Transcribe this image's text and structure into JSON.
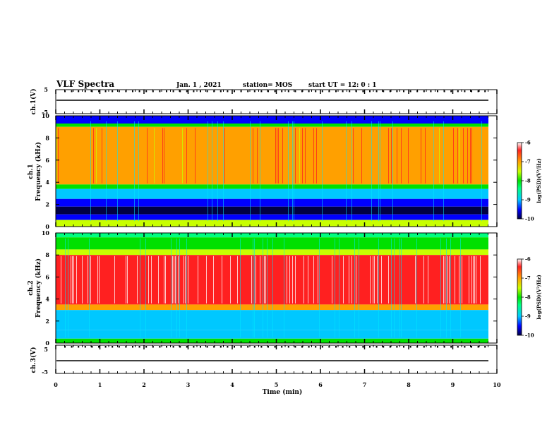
{
  "header": {
    "title": "VLF Spectra",
    "date": "Jan. 1 , 2021",
    "station": "station= MOS",
    "start": "start UT = 12: 0 : 1"
  },
  "chart_data": {
    "type": "heatmap",
    "xlabel": "Time (min)",
    "xlim": [
      0,
      10
    ],
    "x_ticks": [
      "0",
      "1",
      "2",
      "3",
      "4",
      "5",
      "6",
      "7",
      "8",
      "9",
      "10"
    ],
    "panels": [
      {
        "id": "ch1v",
        "ylabel": "ch.1(V)",
        "y_ticks": [
          "5",
          "-5"
        ],
        "ylim": [
          -5,
          5
        ],
        "trace_level": 0,
        "has_markers": true
      },
      {
        "id": "ch1",
        "ylabel_line1": "ch.1",
        "ylabel_line2": "Frequency (kHz)",
        "y_ticks": [
          "10",
          "8",
          "6",
          "4",
          "2",
          "0"
        ],
        "ylim": [
          0,
          10
        ],
        "bands_khz": [
          {
            "from": 9.3,
            "to": 10.0,
            "level": -9.4
          },
          {
            "from": 9.0,
            "to": 9.3,
            "level": -8.2
          },
          {
            "from": 3.8,
            "to": 9.0,
            "level": -7.1
          },
          {
            "from": 3.4,
            "to": 3.8,
            "level": -8.0
          },
          {
            "from": 2.5,
            "to": 3.4,
            "level": -8.9
          },
          {
            "from": 1.8,
            "to": 2.5,
            "level": -9.5
          },
          {
            "from": 1.1,
            "to": 1.8,
            "level": -9.8
          },
          {
            "from": 0.6,
            "to": 1.1,
            "level": -9.4
          },
          {
            "from": 0.0,
            "to": 0.6,
            "level": -7.6
          }
        ]
      },
      {
        "id": "ch2",
        "ylabel_line1": "ch.2",
        "ylabel_line2": "Frequency (kHz)",
        "y_ticks": [
          "10",
          "8",
          "6",
          "4",
          "2",
          "0"
        ],
        "ylim": [
          0,
          10
        ],
        "bands_khz": [
          {
            "from": 9.6,
            "to": 10.0,
            "level": -8.6
          },
          {
            "from": 8.5,
            "to": 9.6,
            "level": -8.0
          },
          {
            "from": 8.0,
            "to": 8.5,
            "level": -7.5
          },
          {
            "from": 3.5,
            "to": 8.0,
            "level": -6.5
          },
          {
            "from": 3.0,
            "to": 3.5,
            "level": -7.3
          },
          {
            "from": 1.2,
            "to": 3.0,
            "level": -8.7
          },
          {
            "from": 0.4,
            "to": 1.2,
            "level": -9.0
          },
          {
            "from": 0.0,
            "to": 0.4,
            "level": -7.8
          }
        ]
      },
      {
        "id": "ch3v",
        "ylabel": "ch.3(V)",
        "y_ticks": [
          "5",
          "-5"
        ],
        "ylim": [
          -5,
          5
        ],
        "trace_level": 0,
        "has_markers": true
      }
    ],
    "colorbar": {
      "label": "log(PSD)(V²/Hz)",
      "ticks": [
        "-6",
        "-7",
        "-8",
        "-9",
        "-10"
      ],
      "range": [
        -10,
        -6
      ],
      "colors": [
        "#000044",
        "#0000ff",
        "#00c8ff",
        "#00ff80",
        "#00e000",
        "#c8ff00",
        "#ffa000",
        "#ff2020",
        "#ffffff"
      ]
    }
  }
}
